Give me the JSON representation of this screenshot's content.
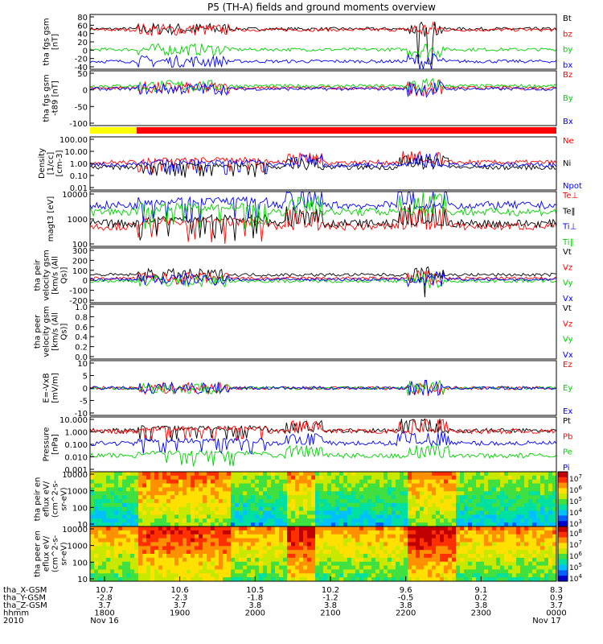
{
  "title": "P5 (TH-A) fields and ground moments overview",
  "colors": {
    "black": "#000000",
    "red": "#ff0000",
    "green": "#00d000",
    "blue": "#0000ff",
    "yellow": "#ffff00"
  },
  "time_axis": {
    "ticks": [
      "1800",
      "1900",
      "2000",
      "2100",
      "2200",
      "2300",
      "0000"
    ],
    "date_left": "Nov 16",
    "date_right": "Nov 17",
    "year": "2010",
    "rows": [
      {
        "label": "tha_X-GSM",
        "values": [
          "10.7",
          "10.6",
          "10.5",
          "10.2",
          "9.6",
          "9.1",
          "8.3"
        ]
      },
      {
        "label": "tha_Y-GSM",
        "values": [
          "-2.8",
          "-2.3",
          "-1.8",
          "-1.2",
          "-0.5",
          "0.2",
          "0.9"
        ]
      },
      {
        "label": "tha_Z-GSM",
        "values": [
          "3.7",
          "3.7",
          "3.8",
          "3.8",
          "3.8",
          "3.8",
          "3.7"
        ]
      },
      {
        "label": "hhmm",
        "values": [],
        "is_time_row": true
      }
    ]
  },
  "chart_data": [
    {
      "type": "line",
      "ylabel": "tha fgs gsm [nT]",
      "y_ticks": [
        "80",
        "60",
        "40",
        "20",
        "0",
        "-20",
        "-40"
      ],
      "ylim": [
        -40,
        85
      ],
      "series": [
        {
          "name": "Bt",
          "color": "#000000",
          "level": 52
        },
        {
          "name": "bz",
          "color": "#ff0000",
          "level": 50
        },
        {
          "name": "by",
          "color": "#00d000",
          "level": 5
        },
        {
          "name": "bx",
          "color": "#0000ff",
          "level": -22
        }
      ]
    },
    {
      "type": "line",
      "ylabel": "tha fgs gsm -t89 [nT]",
      "y_ticks": [
        "50",
        "0",
        "-50",
        "-100"
      ],
      "ylim": [
        -115,
        55
      ],
      "series": [
        {
          "name": "Bz",
          "color": "#ff0000",
          "level": 2
        },
        {
          "name": "By",
          "color": "#00d000",
          "level": 8
        },
        {
          "name": "Bx",
          "color": "#0000ff",
          "level": -1
        }
      ]
    },
    {
      "type": "bar",
      "ylabel": "",
      "segments": [
        {
          "color": "#ffff00",
          "from_fraction": 0.0,
          "to_fraction": 0.1
        },
        {
          "color": "#ff0000",
          "from_fraction": 0.1,
          "to_fraction": 1.0
        }
      ]
    },
    {
      "type": "line",
      "ylabel": "Density [1/cc] [cm-3]",
      "y_ticks": [
        "100.00",
        "10.00",
        "1.00",
        "0.10",
        "0.01"
      ],
      "log_scale": true,
      "ylim": [
        0.01,
        100
      ],
      "series": [
        {
          "name": "Ne",
          "color": "#ff0000",
          "level": 1.2
        },
        {
          "name": "Ni",
          "color": "#000000",
          "level": 0.5
        },
        {
          "name": "Npot",
          "color": "#0000ff",
          "level": 0.8
        }
      ]
    },
    {
      "type": "line",
      "ylabel": "magt3 [eV]",
      "y_ticks": [
        "10000",
        "1000",
        "100"
      ],
      "log_scale": true,
      "ylim": [
        40,
        10000
      ],
      "series": [
        {
          "name": "Te⊥",
          "color": "#ff0000",
          "level": 300
        },
        {
          "name": "Te‖",
          "color": "#000000",
          "level": 400
        },
        {
          "name": "Ti⊥",
          "color": "#0000ff",
          "level": 2500
        },
        {
          "name": "Ti‖",
          "color": "#00d000",
          "level": 1300
        }
      ]
    },
    {
      "type": "line",
      "ylabel": "tha peir velocity gsm [km/s (All Qs)]",
      "y_ticks": [
        "300",
        "200",
        "100",
        "0",
        "-100",
        "-200"
      ],
      "ylim": [
        -230,
        300
      ],
      "series": [
        {
          "name": "Vt",
          "color": "#000000",
          "level": 40
        },
        {
          "name": "Vz",
          "color": "#ff0000",
          "level": 5
        },
        {
          "name": "Vy",
          "color": "#00d000",
          "level": -20
        },
        {
          "name": "Vx",
          "color": "#0000ff",
          "level": -5
        }
      ]
    },
    {
      "type": "line",
      "ylabel": "tha peer velocity gsm [km/s (All Qs)]",
      "y_ticks": [
        "1.0",
        "0.8",
        "0.6",
        "0.4",
        "0.2",
        "0.0"
      ],
      "ylim": [
        0,
        1
      ],
      "series": [
        {
          "name": "Vt",
          "color": "#000000"
        },
        {
          "name": "Vz",
          "color": "#ff0000"
        },
        {
          "name": "Vy",
          "color": "#00d000"
        },
        {
          "name": "Vx",
          "color": "#0000ff"
        }
      ]
    },
    {
      "type": "line",
      "ylabel": "E=-VxB [mV/m]",
      "y_ticks": [
        "10",
        "5",
        "0",
        "-5",
        "-10"
      ],
      "ylim": [
        -10,
        10
      ],
      "series": [
        {
          "name": "Ez",
          "color": "#ff0000",
          "level": 0
        },
        {
          "name": "Ey",
          "color": "#00d000",
          "level": 0
        },
        {
          "name": "Ex",
          "color": "#0000ff",
          "level": 0
        }
      ]
    },
    {
      "type": "line",
      "ylabel": "Pressure [nPa]",
      "y_ticks": [
        "10.000",
        "1.000",
        "0.100",
        "0.010",
        "0.001"
      ],
      "log_scale": true,
      "ylim": [
        0.001,
        10
      ],
      "series": [
        {
          "name": "Pt",
          "color": "#000000",
          "level": 1.0
        },
        {
          "name": "Pb",
          "color": "#ff0000",
          "level": 0.9
        },
        {
          "name": "Pe",
          "color": "#00d000",
          "level": 0.015
        },
        {
          "name": "Pi",
          "color": "#0000ff",
          "level": 0.12
        }
      ]
    },
    {
      "type": "heatmap",
      "ylabel": "tha peir en eflux eV/ (cm^2-s- sr-eV)",
      "y_ticks": [
        "10000",
        "1000",
        "100",
        "10"
      ],
      "log_scale": true,
      "colorbar_ticks": [
        "10^7",
        "10^6",
        "10^5",
        "10^4",
        "10^3"
      ]
    },
    {
      "type": "heatmap",
      "ylabel": "tha peer en eflux eV/ (cm^2-s- sr-eV)",
      "y_ticks": [
        "10000",
        "1000",
        "100",
        "10"
      ],
      "log_scale": true,
      "colorbar_ticks": [
        "10^8",
        "10^7",
        "10^6",
        "10^5",
        "10^4"
      ]
    }
  ]
}
